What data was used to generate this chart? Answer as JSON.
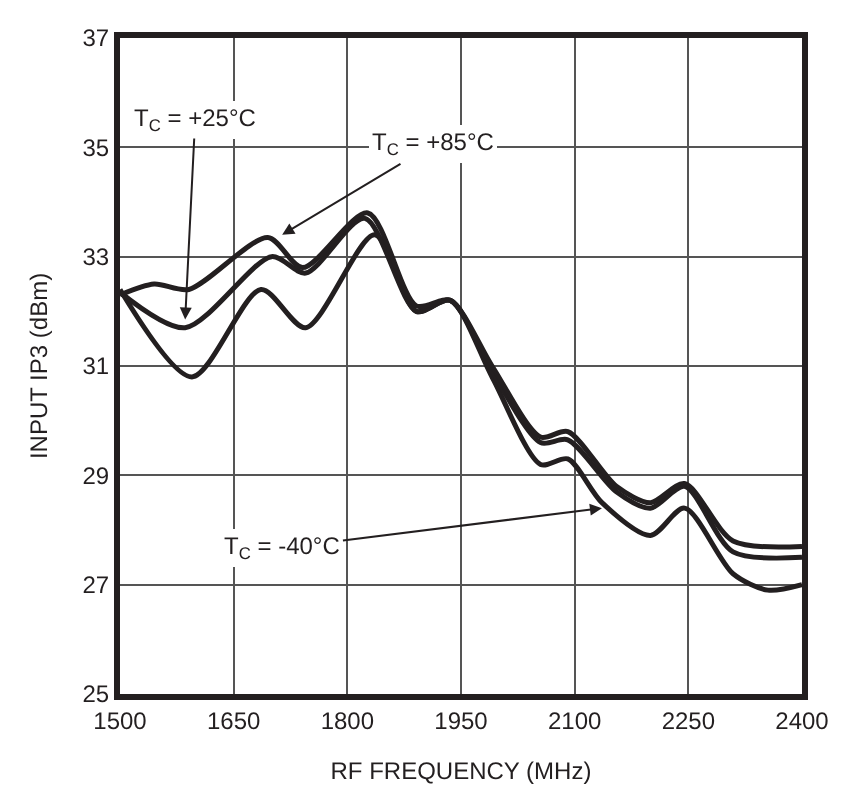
{
  "chart_data": {
    "type": "line",
    "xlabel": "RF FREQUENCY (MHz)",
    "ylabel": "INPUT IP3 (dBm)",
    "xlim": [
      1500,
      2400
    ],
    "xticks": [
      1500,
      1650,
      1800,
      1950,
      2100,
      2250,
      2400
    ],
    "ylim": [
      25,
      37
    ],
    "yticks": [
      25,
      27,
      29,
      31,
      33,
      35,
      37
    ],
    "grid": true,
    "marker": "none",
    "line_style": "solid",
    "series": [
      {
        "color": "#231f20",
        "x": [
          1500,
          1595,
          1686,
          1745,
          1836,
          1891,
          1936,
          1991,
          2055,
          2091,
          2136,
          2200,
          2245,
          2309,
          2355,
          2400
        ],
        "values": [
          32.4,
          30.8,
          32.4,
          31.7,
          33.4,
          32.0,
          32.2,
          30.8,
          29.2,
          29.3,
          28.5,
          27.9,
          28.4,
          27.2,
          26.9,
          27.0
        ]
      },
      {
        "color": "#231f20",
        "x": [
          1500,
          1586,
          1700,
          1745,
          1823,
          1891,
          1936,
          1991,
          2055,
          2091,
          2155,
          2200,
          2245,
          2309,
          2400
        ],
        "values": [
          32.35,
          31.7,
          33.0,
          32.7,
          33.7,
          32.0,
          32.2,
          30.9,
          29.6,
          29.65,
          28.7,
          28.4,
          28.8,
          27.6,
          27.5
        ]
      },
      {
        "color": "#231f20",
        "x": [
          1500,
          1545,
          1591,
          1695,
          1741,
          1827,
          1891,
          1936,
          1991,
          2055,
          2091,
          2155,
          2200,
          2245,
          2309,
          2400
        ],
        "values": [
          32.3,
          32.5,
          32.4,
          33.35,
          32.8,
          33.8,
          32.1,
          32.2,
          31.0,
          29.7,
          29.8,
          28.8,
          28.5,
          28.85,
          27.8,
          27.7
        ]
      }
    ],
    "annotations": [
      {
        "text": "T$_{C}$ = +25°C",
        "x": 1586,
        "y": 31.85
      },
      {
        "text": "T$_{C}$ = +85°C",
        "x": 1714,
        "y": 33.4
      },
      {
        "text": "T$_{C}$ = -40°C",
        "x": 2136,
        "y": 28.4
      }
    ]
  }
}
